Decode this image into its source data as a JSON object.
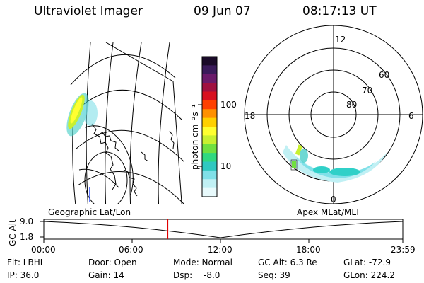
{
  "header": {
    "instrument": "Ultraviolet Imager",
    "date": "09 Jun 07",
    "time": "08:17:13 UT"
  },
  "colorbar": {
    "label": "photon cm⁻²s⁻¹",
    "ticks": [
      {
        "label": "100",
        "value": 100
      },
      {
        "label": "10",
        "value": 10
      }
    ],
    "colors": [
      "#1a0a28",
      "#3a1a5a",
      "#6a1a6a",
      "#a01040",
      "#d81020",
      "#ff4000",
      "#ff9000",
      "#ffd000",
      "#ffff30",
      "#c8f030",
      "#70e040",
      "#30d880",
      "#30c8c0",
      "#80e0e8",
      "#c0f0f4",
      "#e8fafc"
    ]
  },
  "polar_plot": {
    "mlt_labels": {
      "top": "12",
      "left": "18",
      "right": "6",
      "bottom": "0"
    },
    "lat_labels": [
      "60",
      "70",
      "80"
    ]
  },
  "timeline": {
    "left_label": "Geographic Lat/Lon",
    "right_label": "Apex MLat/MLT",
    "y_axis_title": "GC Alt",
    "y_ticks": [
      "9.0",
      "1.8"
    ],
    "x_ticks": [
      "00:00",
      "06:00",
      "12:00",
      "18:00",
      "23:59"
    ],
    "current_time_hours": 8.29,
    "marker_color": "#e00000"
  },
  "info": {
    "filter": "Flt: LBHL",
    "door": "Door: Open",
    "mode": "Mode: Normal",
    "gc_alt": "GC Alt: 6.3 Re",
    "glat": "GLat: -72.9",
    "ip": "IP: 36.0",
    "gain": "Gain: 14",
    "dsp_label": "Dsp:",
    "dsp_value": "-8.0",
    "seq": "Seq: 39",
    "glon": "GLon: 224.2"
  }
}
